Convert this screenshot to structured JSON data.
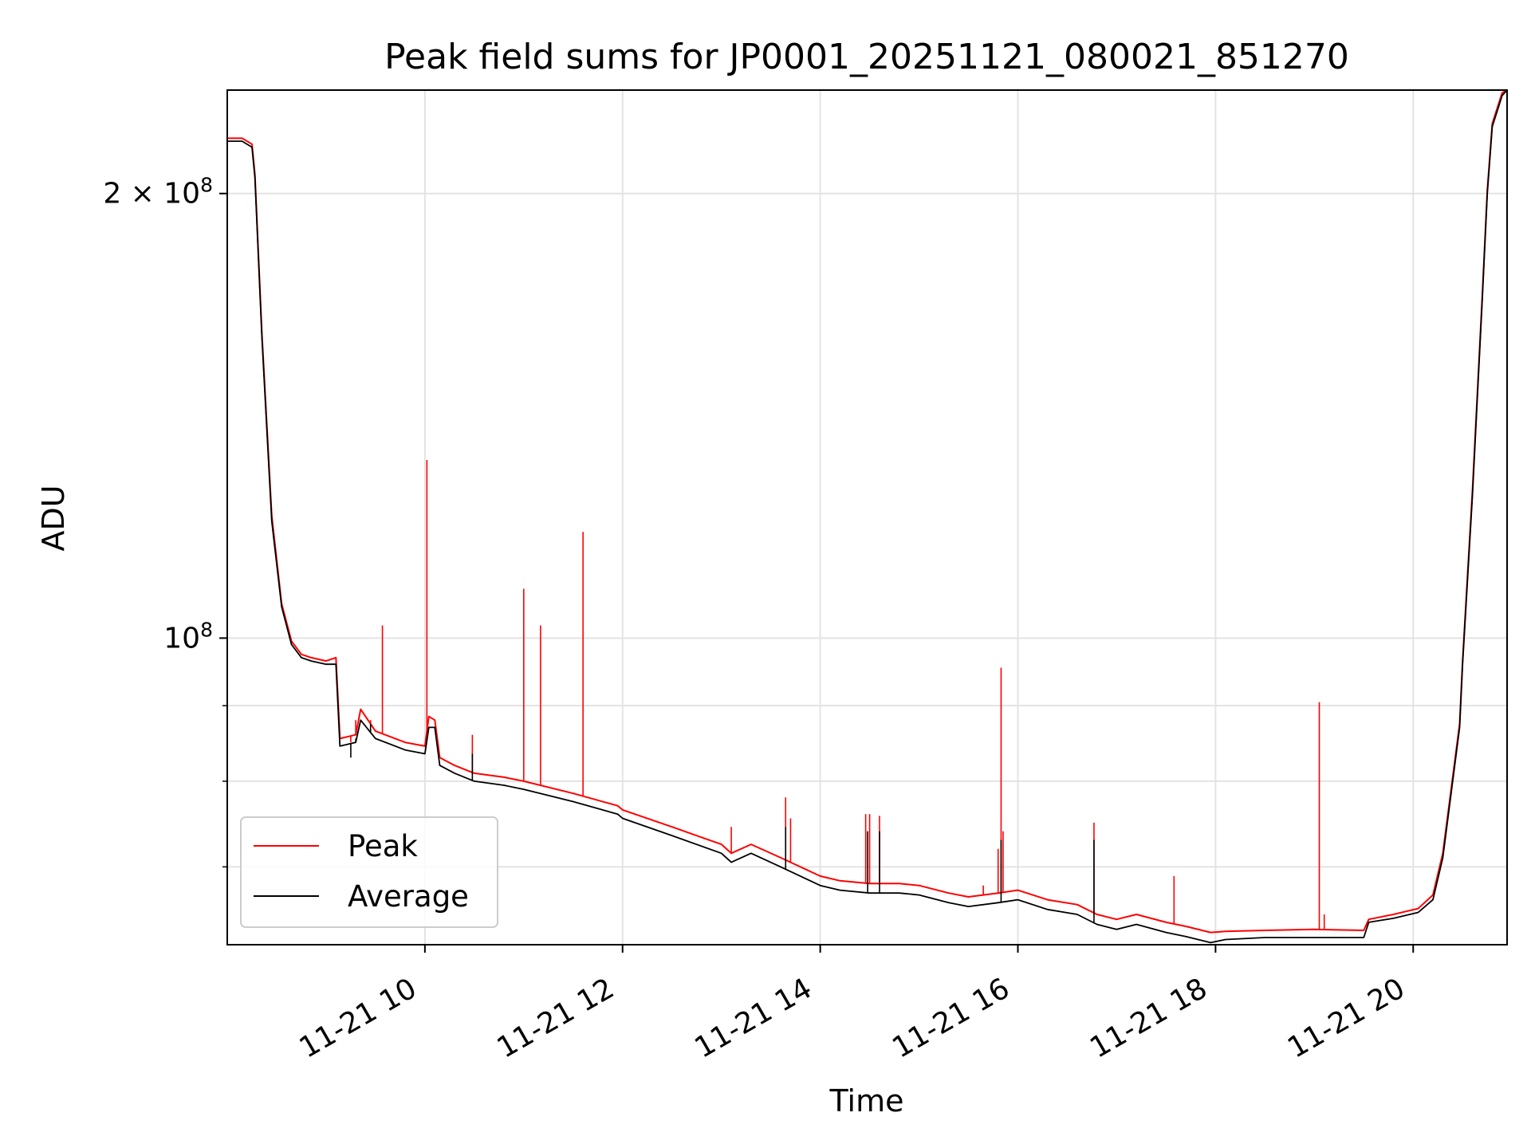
{
  "chart_data": {
    "type": "line",
    "title": "Peak field sums for JP0001_20251121_080021_851270",
    "xlabel": "Time",
    "ylabel": "ADU",
    "yscale": "log",
    "xlim": [
      8.0,
      20.95
    ],
    "ylim": [
      62000000.0,
      235000000.0
    ],
    "grid": true,
    "legend_position": "lower-left",
    "x_ticks": [
      {
        "value": 10,
        "label": "11-21 10"
      },
      {
        "value": 12,
        "label": "11-21 12"
      },
      {
        "value": 14,
        "label": "11-21 14"
      },
      {
        "value": 16,
        "label": "11-21 16"
      },
      {
        "value": 18,
        "label": "11-21 18"
      },
      {
        "value": 20,
        "label": "11-21 20"
      }
    ],
    "y_ticks": [
      {
        "value": 100000000,
        "base": "10",
        "exp": "8",
        "prefix": ""
      },
      {
        "value": 200000000,
        "base": "10",
        "exp": "8",
        "prefix": "2 × "
      }
    ],
    "y_minor_ticks": [
      70000000,
      80000000,
      90000000
    ],
    "series": [
      {
        "name": "Average",
        "color": "#000000",
        "x": [
          8.0,
          8.15,
          8.25,
          8.28,
          8.35,
          8.45,
          8.55,
          8.65,
          8.75,
          8.85,
          9.0,
          9.1,
          9.14,
          9.3,
          9.35,
          9.5,
          9.8,
          10.0,
          10.04,
          10.1,
          10.15,
          10.3,
          10.5,
          10.8,
          11.0,
          11.5,
          11.95,
          12.0,
          12.5,
          13.0,
          13.1,
          13.3,
          13.6,
          14.0,
          14.2,
          14.5,
          14.8,
          15.0,
          15.3,
          15.5,
          15.8,
          16.0,
          16.3,
          16.6,
          16.8,
          17.0,
          17.2,
          17.5,
          17.7,
          17.95,
          18.1,
          18.5,
          19.0,
          19.5,
          19.55,
          19.8,
          20.05,
          20.2,
          20.3,
          20.4,
          20.47,
          20.5,
          20.6,
          20.7,
          20.75,
          20.8,
          20.9,
          20.95
        ],
        "y": [
          217000000.0,
          217000000.0,
          215000000.0,
          205000000.0,
          160000000.0,
          120000000.0,
          105000000.0,
          99000000.0,
          97000000.0,
          96500000.0,
          96000000.0,
          96000000.0,
          84500000.0,
          85000000.0,
          88000000.0,
          85500000.0,
          84000000.0,
          83500000.0,
          87000000.0,
          87000000.0,
          82000000.0,
          81000000.0,
          80000000.0,
          79500000.0,
          79000000.0,
          77500000.0,
          76000000.0,
          75500000.0,
          73500000.0,
          71500000.0,
          70500000.0,
          71500000.0,
          70000000.0,
          68000000.0,
          67500000.0,
          67200000.0,
          67200000.0,
          67000000.0,
          66200000.0,
          65800000.0,
          66200000.0,
          66500000.0,
          65500000.0,
          65000000.0,
          64000000.0,
          63500000.0,
          64000000.0,
          63200000.0,
          62800000.0,
          62200000.0,
          62500000.0,
          62700000.0,
          62700000.0,
          62700000.0,
          64200000.0,
          64600000.0,
          65200000.0,
          66500000.0,
          71000000.0,
          80000000.0,
          87000000.0,
          96000000.0,
          125000000.0,
          170000000.0,
          200000000.0,
          222000000.0,
          233000000.0,
          235000000.0
        ]
      },
      {
        "name": "Peak",
        "color": "#ff0000",
        "x": [
          8.0,
          8.15,
          8.25,
          8.28,
          8.35,
          8.45,
          8.55,
          8.65,
          8.75,
          8.85,
          9.0,
          9.1,
          9.14,
          9.3,
          9.35,
          9.5,
          9.8,
          10.0,
          10.04,
          10.1,
          10.15,
          10.3,
          10.5,
          10.8,
          11.0,
          11.5,
          11.95,
          12.0,
          12.5,
          13.0,
          13.1,
          13.3,
          13.6,
          14.0,
          14.2,
          14.5,
          14.8,
          15.0,
          15.3,
          15.5,
          15.8,
          16.0,
          16.3,
          16.6,
          16.8,
          17.0,
          17.2,
          17.5,
          17.7,
          17.95,
          18.1,
          18.5,
          19.0,
          19.5,
          19.55,
          19.8,
          20.05,
          20.2,
          20.3,
          20.4,
          20.47,
          20.5,
          20.6,
          20.7,
          20.75,
          20.8,
          20.9,
          20.95
        ],
        "y": [
          218000000.0,
          218000000.0,
          216000000.0,
          206000000.0,
          161000000.0,
          121000000.0,
          105500000.0,
          99500000.0,
          97500000.0,
          97000000.0,
          96500000.0,
          97000000.0,
          85500000.0,
          86000000.0,
          89500000.0,
          86500000.0,
          85000000.0,
          84500000.0,
          88500000.0,
          88000000.0,
          83000000.0,
          82000000.0,
          81000000.0,
          80500000.0,
          80000000.0,
          78500000.0,
          77000000.0,
          76500000.0,
          74500000.0,
          72500000.0,
          71500000.0,
          72500000.0,
          71000000.0,
          69000000.0,
          68500000.0,
          68200000.0,
          68200000.0,
          68000000.0,
          67200000.0,
          66800000.0,
          67200000.0,
          67500000.0,
          66500000.0,
          66000000.0,
          65000000.0,
          64500000.0,
          65000000.0,
          64200000.0,
          63800000.0,
          63200000.0,
          63300000.0,
          63400000.0,
          63500000.0,
          63400000.0,
          64500000.0,
          65000000.0,
          65600000.0,
          67000000.0,
          71500000.0,
          80500000.0,
          87500000.0,
          96500000.0,
          126000000.0,
          171000000.0,
          201000000.0,
          223000000.0,
          234000000.0,
          235000000.0
        ]
      }
    ],
    "peak_spikes": [
      {
        "x": 9.25,
        "y": 85000000.0
      },
      {
        "x": 9.3,
        "y": 88000000.0
      },
      {
        "x": 9.45,
        "y": 88000000.0
      },
      {
        "x": 9.57,
        "y": 102000000.0
      },
      {
        "x": 10.02,
        "y": 132000000.0
      },
      {
        "x": 10.48,
        "y": 86000000.0
      },
      {
        "x": 11.0,
        "y": 108000000.0
      },
      {
        "x": 11.17,
        "y": 102000000.0
      },
      {
        "x": 11.6,
        "y": 118000000.0
      },
      {
        "x": 13.1,
        "y": 74500000.0
      },
      {
        "x": 13.65,
        "y": 78000000.0
      },
      {
        "x": 13.7,
        "y": 75500000.0
      },
      {
        "x": 14.46,
        "y": 76000000.0
      },
      {
        "x": 14.5,
        "y": 76000000.0
      },
      {
        "x": 14.6,
        "y": 75800000.0
      },
      {
        "x": 15.65,
        "y": 68000000.0
      },
      {
        "x": 15.8,
        "y": 72000000.0
      },
      {
        "x": 15.83,
        "y": 95500000.0
      },
      {
        "x": 15.85,
        "y": 74000000.0
      },
      {
        "x": 16.77,
        "y": 75000000.0
      },
      {
        "x": 17.58,
        "y": 69000000.0
      },
      {
        "x": 19.05,
        "y": 90500000.0
      },
      {
        "x": 19.1,
        "y": 65000000.0
      }
    ],
    "average_spikes": [
      {
        "x": 9.25,
        "y": 83000000.0
      },
      {
        "x": 9.3,
        "y": 85500000.0
      },
      {
        "x": 9.45,
        "y": 87500000.0
      },
      {
        "x": 10.48,
        "y": 83500000.0
      },
      {
        "x": 13.65,
        "y": 74500000.0
      },
      {
        "x": 14.48,
        "y": 74000000.0
      },
      {
        "x": 14.6,
        "y": 74000000.0
      },
      {
        "x": 15.83,
        "y": 73000000.0
      },
      {
        "x": 16.77,
        "y": 73000000.0
      }
    ]
  }
}
